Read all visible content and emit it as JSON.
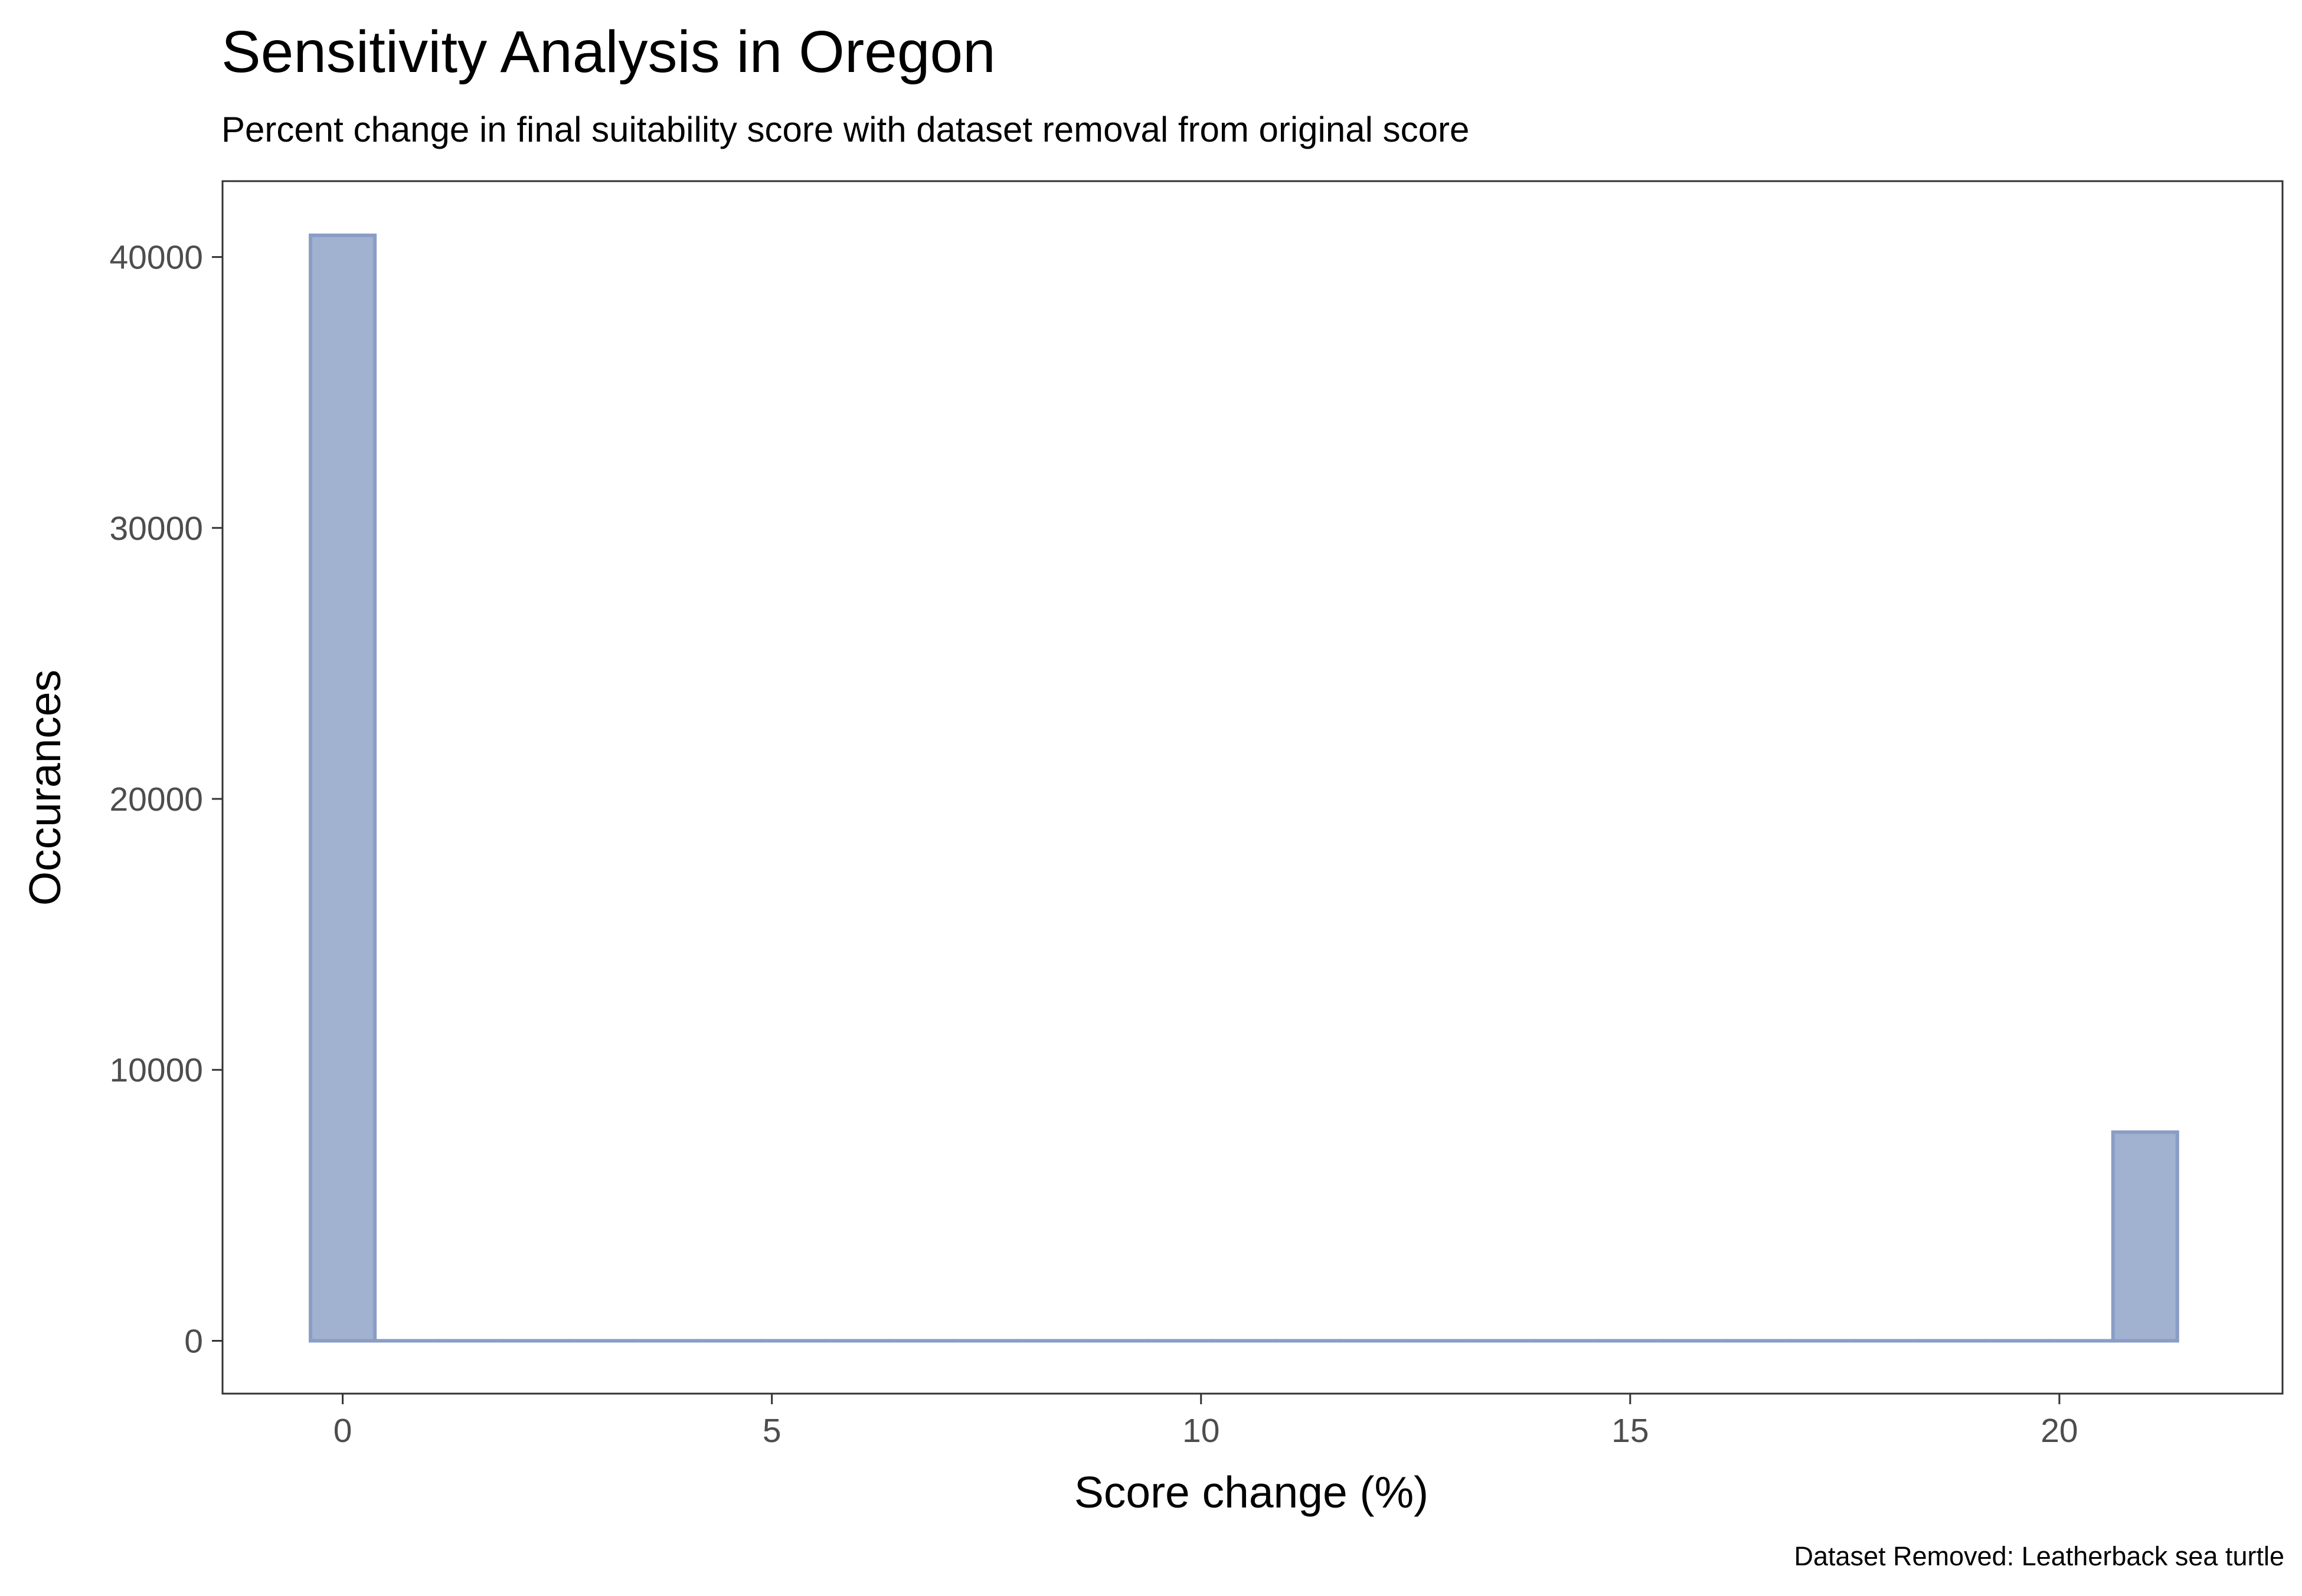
{
  "chart_data": {
    "type": "bar",
    "title": "Sensitivity Analysis in Oregon",
    "subtitle": "Percent change in final suitability score with dataset removal from original score",
    "caption": "Dataset Removed: Leatherback sea turtle",
    "xlabel": "Score change (%)",
    "ylabel": "Occurances",
    "xlim": [
      -1.4,
      22.6
    ],
    "ylim": [
      -1950,
      42800
    ],
    "x_ticks": [
      0,
      5,
      10,
      15,
      20
    ],
    "y_ticks": [
      0,
      10000,
      20000,
      30000,
      40000
    ],
    "bin_width": 0.75,
    "bins": [
      {
        "x": 0,
        "count": 40800
      },
      {
        "x": 0.75,
        "count": 0
      },
      {
        "x": 1.5,
        "count": 0
      },
      {
        "x": 2.25,
        "count": 0
      },
      {
        "x": 3.0,
        "count": 0
      },
      {
        "x": 3.75,
        "count": 0
      },
      {
        "x": 4.5,
        "count": 0
      },
      {
        "x": 5.25,
        "count": 0
      },
      {
        "x": 6.0,
        "count": 0
      },
      {
        "x": 6.75,
        "count": 0
      },
      {
        "x": 7.5,
        "count": 0
      },
      {
        "x": 8.25,
        "count": 0
      },
      {
        "x": 9.0,
        "count": 0
      },
      {
        "x": 9.75,
        "count": 0
      },
      {
        "x": 10.5,
        "count": 0
      },
      {
        "x": 11.25,
        "count": 0
      },
      {
        "x": 12.0,
        "count": 0
      },
      {
        "x": 12.75,
        "count": 0
      },
      {
        "x": 13.5,
        "count": 0
      },
      {
        "x": 14.25,
        "count": 0
      },
      {
        "x": 15.0,
        "count": 0
      },
      {
        "x": 15.75,
        "count": 0
      },
      {
        "x": 16.5,
        "count": 0
      },
      {
        "x": 17.25,
        "count": 0
      },
      {
        "x": 18.0,
        "count": 0
      },
      {
        "x": 18.75,
        "count": 0
      },
      {
        "x": 19.5,
        "count": 0
      },
      {
        "x": 20.25,
        "count": 0
      },
      {
        "x": 21.0,
        "count": 7700
      }
    ],
    "grid": false,
    "legend": "none",
    "colors": {
      "bar_fill": "#a1b1d0",
      "bar_outline": "#8a9dc6",
      "panel_border": "#333333",
      "tick_text": "#4d4d4d"
    }
  }
}
